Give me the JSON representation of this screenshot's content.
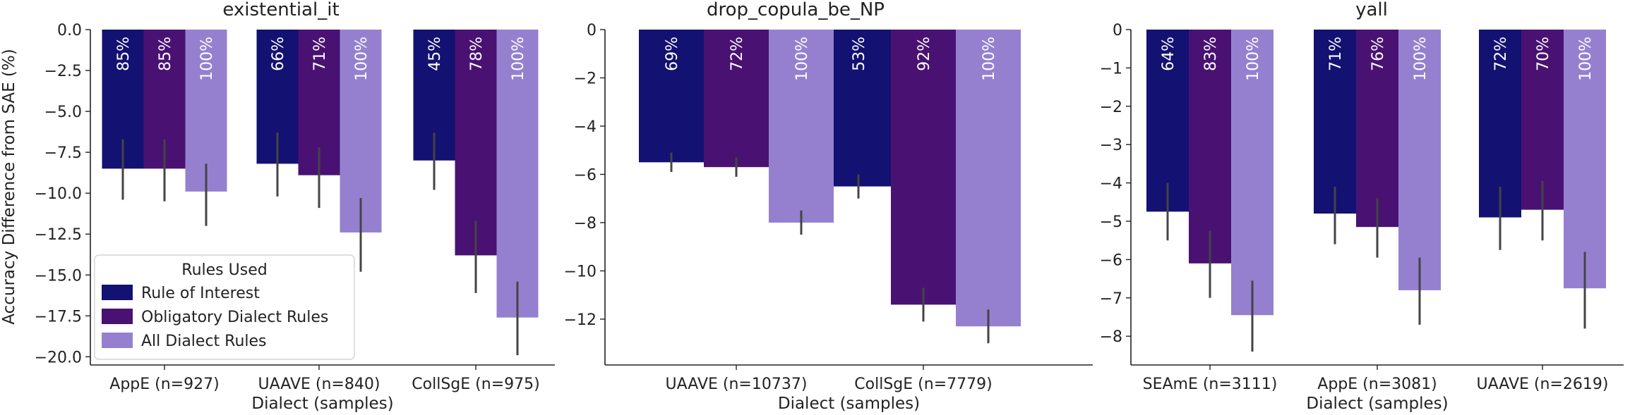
{
  "ylabel": "Accuracy Difference from SAE (%)",
  "xlabel": "Dialect (samples)",
  "legend": {
    "title": "Rules Used",
    "location": "lower-left of first panel",
    "entries": [
      "Rule of Interest",
      "Obligatory Dialect Rules",
      "All Dialect Rules"
    ]
  },
  "colors": [
    "#131171",
    "#491272",
    "#9580cf"
  ],
  "chart_data": [
    {
      "type": "bar",
      "title": "existential_it",
      "categories": [
        "AppE (n=927)",
        "UAAVE (n=840)",
        "CollSgE (n=975)"
      ],
      "ylim": [
        -20.5,
        0
      ],
      "yticks": [
        0,
        -2.5,
        -5,
        -7.5,
        -10,
        -12.5,
        -15,
        -17.5,
        -20
      ],
      "ytick_labels": [
        "0.0",
        "−2.5",
        "−5.0",
        "−7.5",
        "−10.0",
        "−12.5",
        "−15.0",
        "−17.5",
        "−20.0"
      ],
      "series": [
        {
          "name": "Rule of Interest",
          "values": [
            -8.5,
            -8.2,
            -8.0
          ],
          "err_low": [
            -10.4,
            -10.2,
            -9.8
          ],
          "err_high": [
            -6.7,
            -6.3,
            -6.3
          ],
          "labels": [
            "85%",
            "66%",
            "45%"
          ]
        },
        {
          "name": "Obligatory Dialect Rules",
          "values": [
            -8.5,
            -8.9,
            -13.8
          ],
          "err_low": [
            -10.5,
            -10.9,
            -16.1
          ],
          "err_high": [
            -6.7,
            -7.2,
            -11.7
          ],
          "labels": [
            "85%",
            "71%",
            "78%"
          ]
        },
        {
          "name": "All Dialect Rules",
          "values": [
            -9.9,
            -12.4,
            -17.6
          ],
          "err_low": [
            -12.0,
            -14.8,
            -19.9
          ],
          "err_high": [
            -8.2,
            -10.3,
            -15.4
          ],
          "labels": [
            "100%",
            "100%",
            "100%"
          ]
        }
      ]
    },
    {
      "type": "bar",
      "title": "drop_copula_be_NP",
      "categories": [
        "UAAVE (n=10737)",
        "CollSgE (n=7779)"
      ],
      "ylim": [
        -13.9,
        0
      ],
      "yticks": [
        0,
        -2,
        -4,
        -6,
        -8,
        -10,
        -12
      ],
      "ytick_labels": [
        "0",
        "−2",
        "−4",
        "−6",
        "−8",
        "−10",
        "−12"
      ],
      "series": [
        {
          "name": "Rule of Interest",
          "values": [
            -5.5,
            -6.5
          ],
          "err_low": [
            -5.9,
            -7.0
          ],
          "err_high": [
            -5.1,
            -6.0
          ],
          "labels": [
            "69%",
            "53%"
          ]
        },
        {
          "name": "Obligatory Dialect Rules",
          "values": [
            -5.7,
            -11.4
          ],
          "err_low": [
            -6.1,
            -12.1
          ],
          "err_high": [
            -5.3,
            -10.7
          ],
          "labels": [
            "72%",
            "92%"
          ]
        },
        {
          "name": "All Dialect Rules",
          "values": [
            -8.0,
            -12.3
          ],
          "err_low": [
            -8.5,
            -13.0
          ],
          "err_high": [
            -7.5,
            -11.6
          ],
          "labels": [
            "100%",
            "100%"
          ]
        }
      ]
    },
    {
      "type": "bar",
      "title": "yall",
      "categories": [
        "SEAmE (n=3111)",
        "AppE (n=3081)",
        "UAAVE (n=2619)"
      ],
      "ylim": [
        -8.75,
        0
      ],
      "yticks": [
        0,
        -1,
        -2,
        -3,
        -4,
        -5,
        -6,
        -7,
        -8
      ],
      "ytick_labels": [
        "0",
        "−1",
        "−2",
        "−3",
        "−4",
        "−5",
        "−6",
        "−7",
        "−8"
      ],
      "series": [
        {
          "name": "Rule of Interest",
          "values": [
            -4.75,
            -4.8,
            -4.9
          ],
          "err_low": [
            -5.5,
            -5.6,
            -5.75
          ],
          "err_high": [
            -4.0,
            -4.1,
            -4.1
          ],
          "labels": [
            "64%",
            "71%",
            "72%"
          ]
        },
        {
          "name": "Obligatory Dialect Rules",
          "values": [
            -6.1,
            -5.15,
            -4.7
          ],
          "err_low": [
            -7.0,
            -5.95,
            -5.5
          ],
          "err_high": [
            -5.25,
            -4.4,
            -3.95
          ],
          "labels": [
            "83%",
            "76%",
            "70%"
          ]
        },
        {
          "name": "All Dialect Rules",
          "values": [
            -7.45,
            -6.8,
            -6.75
          ],
          "err_low": [
            -8.4,
            -7.7,
            -7.8
          ],
          "err_high": [
            -6.55,
            -5.95,
            -5.8
          ],
          "labels": [
            "100%",
            "100%",
            "100%"
          ]
        }
      ]
    }
  ]
}
